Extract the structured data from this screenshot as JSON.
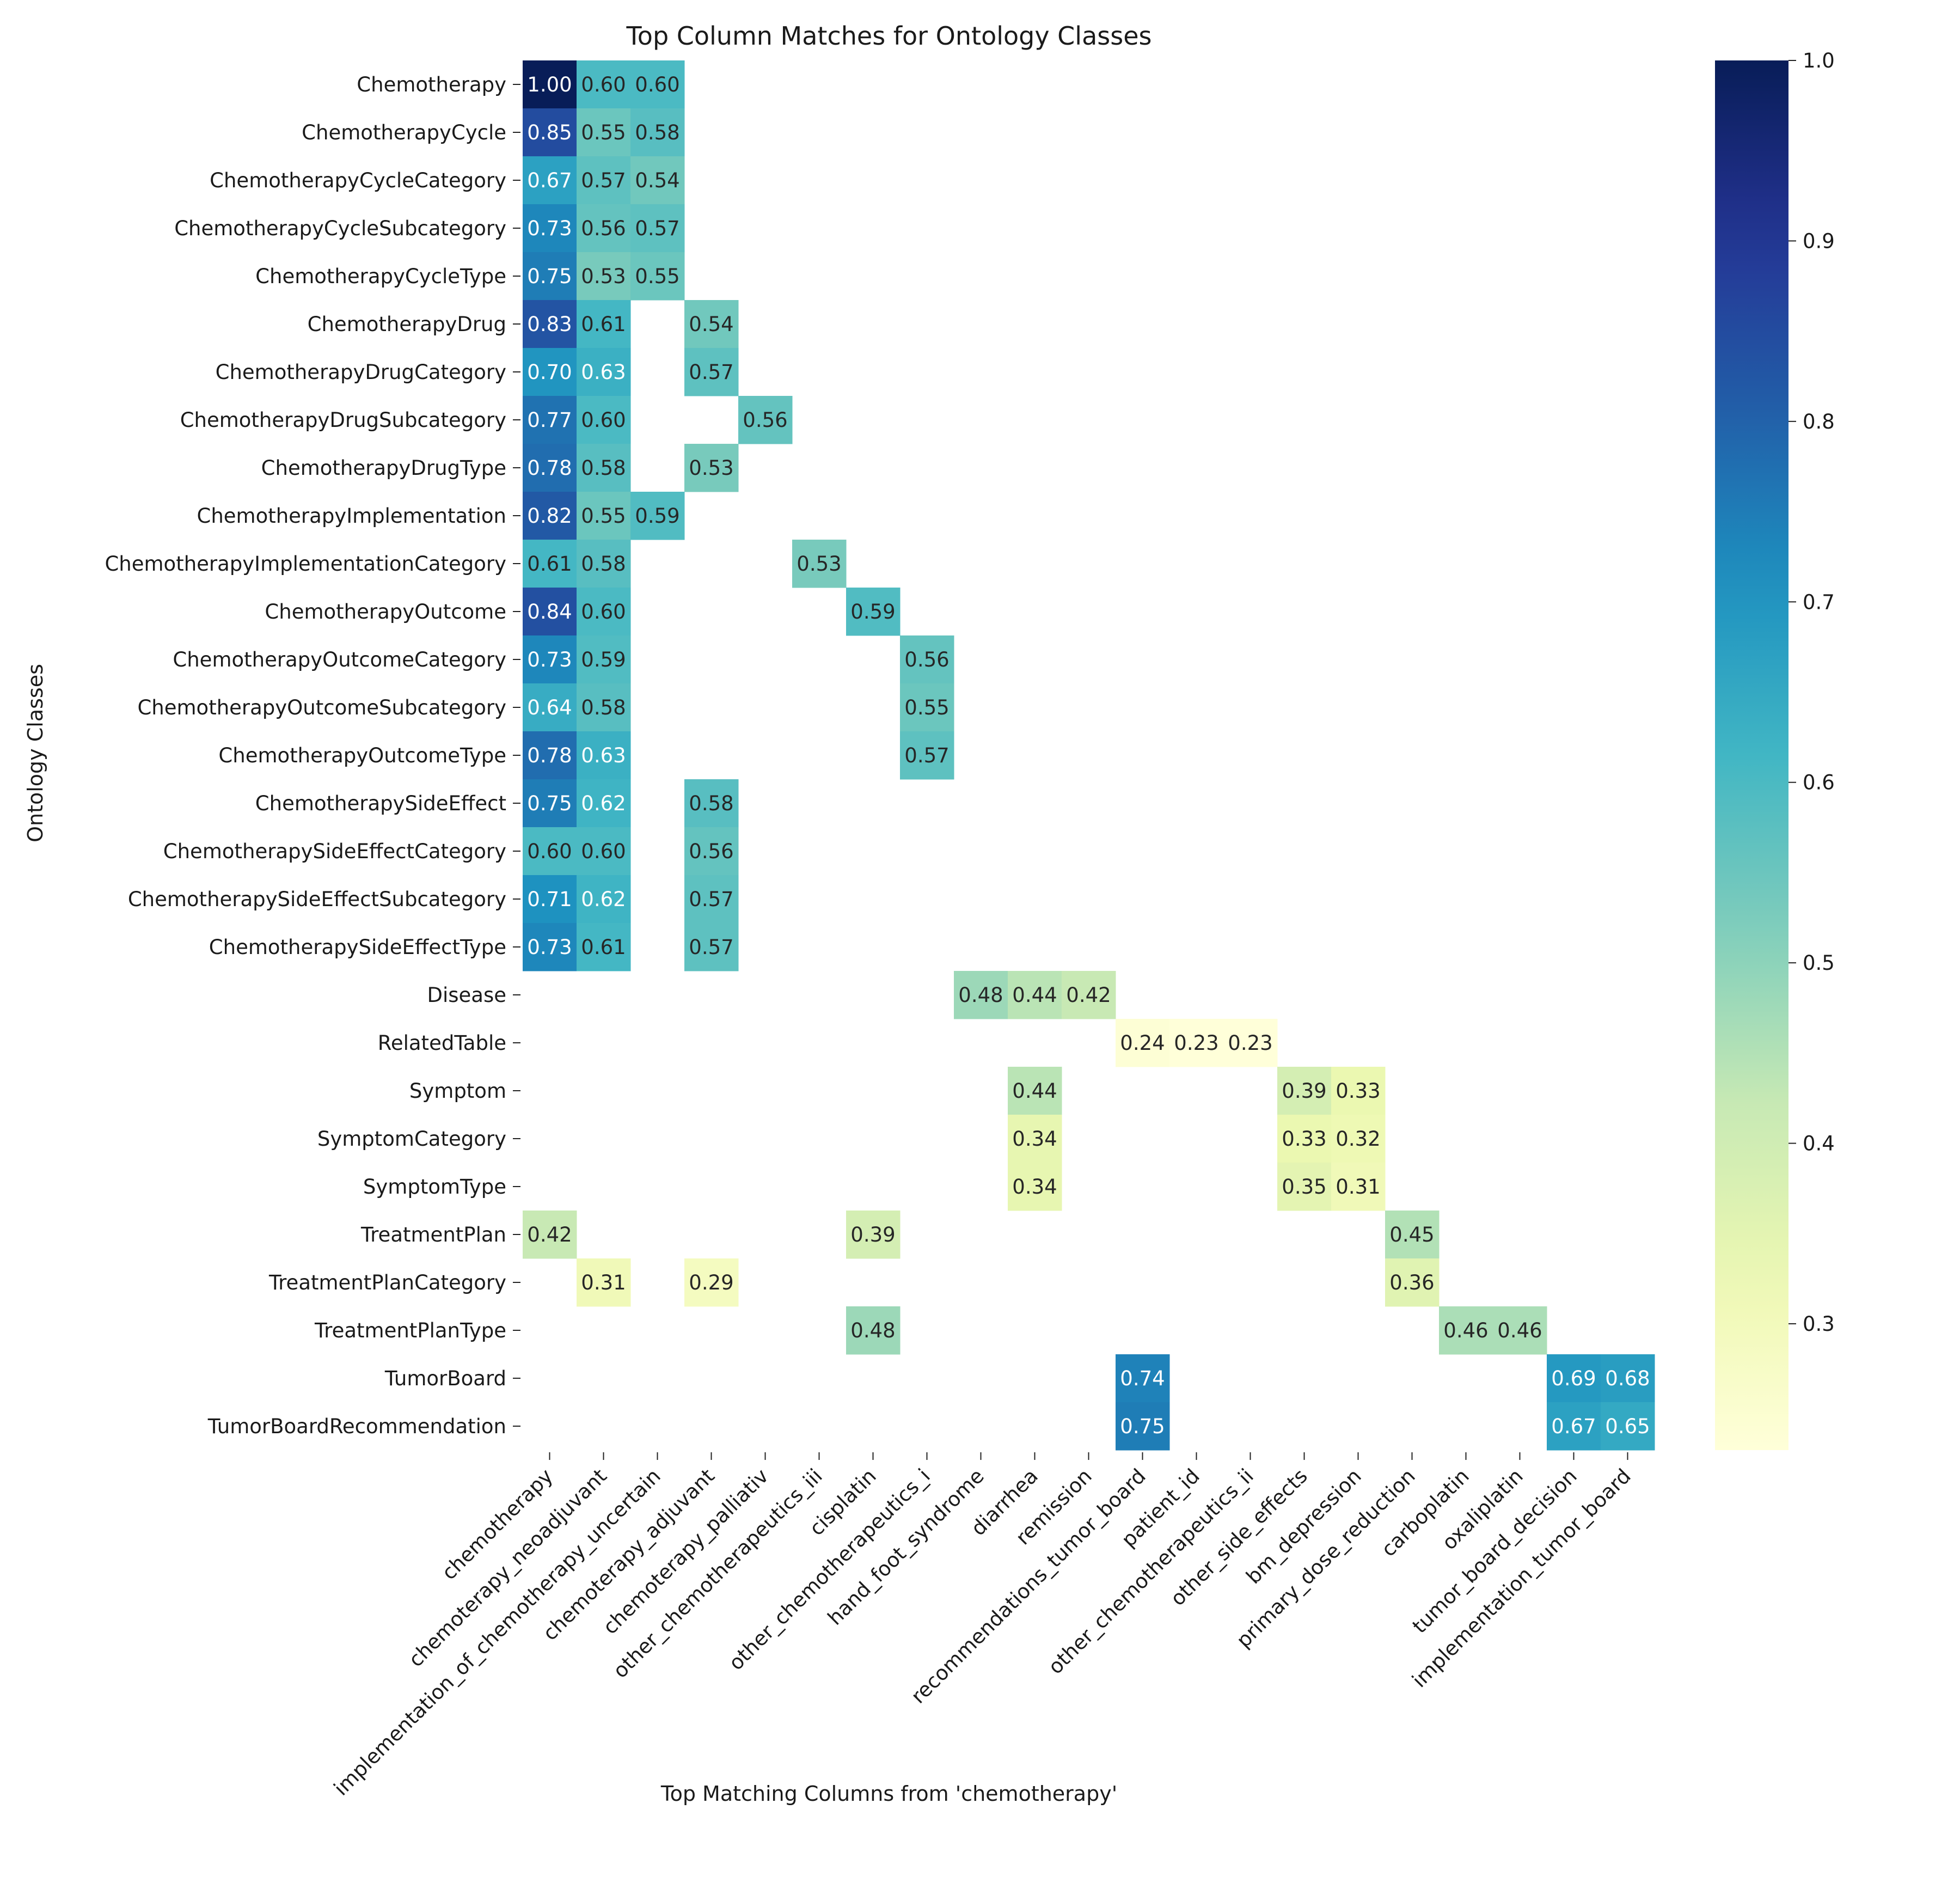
{
  "chart_data": {
    "type": "heatmap",
    "title": "Top Column Matches for Ontology Classes",
    "xlabel": "Top Matching Columns from 'chemotherapy'",
    "ylabel": "Ontology Classes",
    "columns": [
      "chemotherapy",
      "chemoterapy_neoadjuvant",
      "implementation_of_chemotherapy_uncertain",
      "chemoterapy_adjuvant",
      "chemoterapy_palliativ",
      "other_chemotherapeutics_iii",
      "cisplatin",
      "other_chemotherapeutics_i",
      "hand_foot_syndrome",
      "diarrhea",
      "remission",
      "recommendations_tumor_board",
      "patient_id",
      "other_chemotherapeutics_ii",
      "other_side_effects",
      "bm_depression",
      "primary_dose_reduction",
      "carboplatin",
      "oxaliplatin",
      "tumor_board_decision",
      "implementation_tumor_board"
    ],
    "rows": [
      "Chemotherapy",
      "ChemotherapyCycle",
      "ChemotherapyCycleCategory",
      "ChemotherapyCycleSubcategory",
      "ChemotherapyCycleType",
      "ChemotherapyDrug",
      "ChemotherapyDrugCategory",
      "ChemotherapyDrugSubcategory",
      "ChemotherapyDrugType",
      "ChemotherapyImplementation",
      "ChemotherapyImplementationCategory",
      "ChemotherapyOutcome",
      "ChemotherapyOutcomeCategory",
      "ChemotherapyOutcomeSubcategory",
      "ChemotherapyOutcomeType",
      "ChemotherapySideEffect",
      "ChemotherapySideEffectCategory",
      "ChemotherapySideEffectSubcategory",
      "ChemotherapySideEffectType",
      "Disease",
      "RelatedTable",
      "Symptom",
      "SymptomCategory",
      "SymptomType",
      "TreatmentPlan",
      "TreatmentPlanCategory",
      "TreatmentPlanType",
      "TumorBoard",
      "TumorBoardRecommendation"
    ],
    "values": [
      [
        1.0,
        0.6,
        0.6,
        null,
        null,
        null,
        null,
        null,
        null,
        null,
        null,
        null,
        null,
        null,
        null,
        null,
        null,
        null,
        null,
        null,
        null
      ],
      [
        0.85,
        0.55,
        0.58,
        null,
        null,
        null,
        null,
        null,
        null,
        null,
        null,
        null,
        null,
        null,
        null,
        null,
        null,
        null,
        null,
        null,
        null
      ],
      [
        0.67,
        0.57,
        0.54,
        null,
        null,
        null,
        null,
        null,
        null,
        null,
        null,
        null,
        null,
        null,
        null,
        null,
        null,
        null,
        null,
        null,
        null
      ],
      [
        0.73,
        0.56,
        0.57,
        null,
        null,
        null,
        null,
        null,
        null,
        null,
        null,
        null,
        null,
        null,
        null,
        null,
        null,
        null,
        null,
        null,
        null
      ],
      [
        0.75,
        0.53,
        0.55,
        null,
        null,
        null,
        null,
        null,
        null,
        null,
        null,
        null,
        null,
        null,
        null,
        null,
        null,
        null,
        null,
        null,
        null
      ],
      [
        0.83,
        0.61,
        null,
        0.54,
        null,
        null,
        null,
        null,
        null,
        null,
        null,
        null,
        null,
        null,
        null,
        null,
        null,
        null,
        null,
        null,
        null
      ],
      [
        0.7,
        0.63,
        null,
        0.57,
        null,
        null,
        null,
        null,
        null,
        null,
        null,
        null,
        null,
        null,
        null,
        null,
        null,
        null,
        null,
        null,
        null
      ],
      [
        0.77,
        0.6,
        null,
        null,
        0.56,
        null,
        null,
        null,
        null,
        null,
        null,
        null,
        null,
        null,
        null,
        null,
        null,
        null,
        null,
        null,
        null
      ],
      [
        0.78,
        0.58,
        null,
        0.53,
        null,
        null,
        null,
        null,
        null,
        null,
        null,
        null,
        null,
        null,
        null,
        null,
        null,
        null,
        null,
        null,
        null
      ],
      [
        0.82,
        0.55,
        0.59,
        null,
        null,
        null,
        null,
        null,
        null,
        null,
        null,
        null,
        null,
        null,
        null,
        null,
        null,
        null,
        null,
        null,
        null
      ],
      [
        0.61,
        0.58,
        null,
        null,
        null,
        0.53,
        null,
        null,
        null,
        null,
        null,
        null,
        null,
        null,
        null,
        null,
        null,
        null,
        null,
        null,
        null
      ],
      [
        0.84,
        0.6,
        null,
        null,
        null,
        null,
        0.59,
        null,
        null,
        null,
        null,
        null,
        null,
        null,
        null,
        null,
        null,
        null,
        null,
        null,
        null
      ],
      [
        0.73,
        0.59,
        null,
        null,
        null,
        null,
        null,
        0.56,
        null,
        null,
        null,
        null,
        null,
        null,
        null,
        null,
        null,
        null,
        null,
        null,
        null
      ],
      [
        0.64,
        0.58,
        null,
        null,
        null,
        null,
        null,
        0.55,
        null,
        null,
        null,
        null,
        null,
        null,
        null,
        null,
        null,
        null,
        null,
        null,
        null
      ],
      [
        0.78,
        0.63,
        null,
        null,
        null,
        null,
        null,
        0.57,
        null,
        null,
        null,
        null,
        null,
        null,
        null,
        null,
        null,
        null,
        null,
        null,
        null
      ],
      [
        0.75,
        0.62,
        null,
        0.58,
        null,
        null,
        null,
        null,
        null,
        null,
        null,
        null,
        null,
        null,
        null,
        null,
        null,
        null,
        null,
        null,
        null
      ],
      [
        0.6,
        0.6,
        null,
        0.56,
        null,
        null,
        null,
        null,
        null,
        null,
        null,
        null,
        null,
        null,
        null,
        null,
        null,
        null,
        null,
        null,
        null
      ],
      [
        0.71,
        0.62,
        null,
        0.57,
        null,
        null,
        null,
        null,
        null,
        null,
        null,
        null,
        null,
        null,
        null,
        null,
        null,
        null,
        null,
        null,
        null
      ],
      [
        0.73,
        0.61,
        null,
        0.57,
        null,
        null,
        null,
        null,
        null,
        null,
        null,
        null,
        null,
        null,
        null,
        null,
        null,
        null,
        null,
        null,
        null
      ],
      [
        null,
        null,
        null,
        null,
        null,
        null,
        null,
        null,
        0.48,
        0.44,
        0.42,
        null,
        null,
        null,
        null,
        null,
        null,
        null,
        null,
        null,
        null
      ],
      [
        null,
        null,
        null,
        null,
        null,
        null,
        null,
        null,
        null,
        null,
        null,
        0.24,
        0.23,
        0.23,
        null,
        null,
        null,
        null,
        null,
        null,
        null
      ],
      [
        null,
        null,
        null,
        null,
        null,
        null,
        null,
        null,
        null,
        0.44,
        null,
        null,
        null,
        null,
        0.39,
        0.33,
        null,
        null,
        null,
        null,
        null
      ],
      [
        null,
        null,
        null,
        null,
        null,
        null,
        null,
        null,
        null,
        0.34,
        null,
        null,
        null,
        null,
        0.33,
        0.32,
        null,
        null,
        null,
        null,
        null
      ],
      [
        null,
        null,
        null,
        null,
        null,
        null,
        null,
        null,
        null,
        0.34,
        null,
        null,
        null,
        null,
        0.35,
        0.31,
        null,
        null,
        null,
        null,
        null
      ],
      [
        0.42,
        null,
        null,
        null,
        null,
        null,
        0.39,
        null,
        null,
        null,
        null,
        null,
        null,
        null,
        null,
        null,
        0.45,
        null,
        null,
        null,
        null
      ],
      [
        null,
        0.31,
        null,
        0.29,
        null,
        null,
        null,
        null,
        null,
        null,
        null,
        null,
        null,
        null,
        null,
        null,
        0.36,
        null,
        null,
        null,
        null
      ],
      [
        null,
        null,
        null,
        null,
        null,
        null,
        0.48,
        null,
        null,
        null,
        null,
        null,
        null,
        null,
        null,
        null,
        null,
        0.46,
        0.46,
        null,
        null
      ],
      [
        null,
        null,
        null,
        null,
        null,
        null,
        null,
        null,
        null,
        null,
        null,
        0.74,
        null,
        null,
        null,
        null,
        null,
        null,
        null,
        0.69,
        0.68
      ],
      [
        null,
        null,
        null,
        null,
        null,
        null,
        null,
        null,
        null,
        null,
        null,
        0.75,
        null,
        null,
        null,
        null,
        null,
        null,
        null,
        0.67,
        0.65
      ]
    ],
    "colorbar": {
      "min": 0.23,
      "max": 1.0,
      "ticks": [
        "0.3",
        "0.4",
        "0.5",
        "0.6",
        "0.7",
        "0.8",
        "0.9",
        "1.0"
      ],
      "colormap": "YlGnBu"
    },
    "grid": false,
    "legend": "colorbar-right"
  }
}
